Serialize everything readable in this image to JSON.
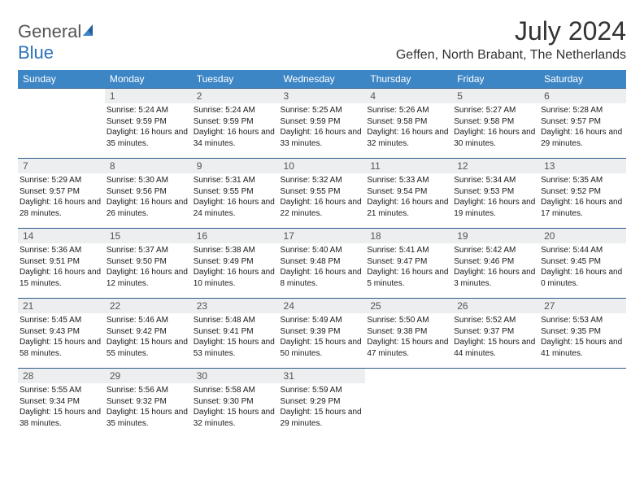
{
  "logo": {
    "text_general": "General",
    "text_blue": "Blue"
  },
  "header": {
    "month_title": "July 2024",
    "location": "Geffen, North Brabant, The Netherlands"
  },
  "colors": {
    "header_bg": "#3d86c6",
    "header_text": "#ffffff",
    "daynum_bg": "#eceeef",
    "row_border": "#2a5a8a",
    "logo_blue": "#2a73b8"
  },
  "weekdays": [
    "Sunday",
    "Monday",
    "Tuesday",
    "Wednesday",
    "Thursday",
    "Friday",
    "Saturday"
  ],
  "weeks": [
    [
      {
        "empty": true
      },
      {
        "n": "1",
        "sr": "5:24 AM",
        "ss": "9:59 PM",
        "dl": "16 hours and 35 minutes."
      },
      {
        "n": "2",
        "sr": "5:24 AM",
        "ss": "9:59 PM",
        "dl": "16 hours and 34 minutes."
      },
      {
        "n": "3",
        "sr": "5:25 AM",
        "ss": "9:59 PM",
        "dl": "16 hours and 33 minutes."
      },
      {
        "n": "4",
        "sr": "5:26 AM",
        "ss": "9:58 PM",
        "dl": "16 hours and 32 minutes."
      },
      {
        "n": "5",
        "sr": "5:27 AM",
        "ss": "9:58 PM",
        "dl": "16 hours and 30 minutes."
      },
      {
        "n": "6",
        "sr": "5:28 AM",
        "ss": "9:57 PM",
        "dl": "16 hours and 29 minutes."
      }
    ],
    [
      {
        "n": "7",
        "sr": "5:29 AM",
        "ss": "9:57 PM",
        "dl": "16 hours and 28 minutes."
      },
      {
        "n": "8",
        "sr": "5:30 AM",
        "ss": "9:56 PM",
        "dl": "16 hours and 26 minutes."
      },
      {
        "n": "9",
        "sr": "5:31 AM",
        "ss": "9:55 PM",
        "dl": "16 hours and 24 minutes."
      },
      {
        "n": "10",
        "sr": "5:32 AM",
        "ss": "9:55 PM",
        "dl": "16 hours and 22 minutes."
      },
      {
        "n": "11",
        "sr": "5:33 AM",
        "ss": "9:54 PM",
        "dl": "16 hours and 21 minutes."
      },
      {
        "n": "12",
        "sr": "5:34 AM",
        "ss": "9:53 PM",
        "dl": "16 hours and 19 minutes."
      },
      {
        "n": "13",
        "sr": "5:35 AM",
        "ss": "9:52 PM",
        "dl": "16 hours and 17 minutes."
      }
    ],
    [
      {
        "n": "14",
        "sr": "5:36 AM",
        "ss": "9:51 PM",
        "dl": "16 hours and 15 minutes."
      },
      {
        "n": "15",
        "sr": "5:37 AM",
        "ss": "9:50 PM",
        "dl": "16 hours and 12 minutes."
      },
      {
        "n": "16",
        "sr": "5:38 AM",
        "ss": "9:49 PM",
        "dl": "16 hours and 10 minutes."
      },
      {
        "n": "17",
        "sr": "5:40 AM",
        "ss": "9:48 PM",
        "dl": "16 hours and 8 minutes."
      },
      {
        "n": "18",
        "sr": "5:41 AM",
        "ss": "9:47 PM",
        "dl": "16 hours and 5 minutes."
      },
      {
        "n": "19",
        "sr": "5:42 AM",
        "ss": "9:46 PM",
        "dl": "16 hours and 3 minutes."
      },
      {
        "n": "20",
        "sr": "5:44 AM",
        "ss": "9:45 PM",
        "dl": "16 hours and 0 minutes."
      }
    ],
    [
      {
        "n": "21",
        "sr": "5:45 AM",
        "ss": "9:43 PM",
        "dl": "15 hours and 58 minutes."
      },
      {
        "n": "22",
        "sr": "5:46 AM",
        "ss": "9:42 PM",
        "dl": "15 hours and 55 minutes."
      },
      {
        "n": "23",
        "sr": "5:48 AM",
        "ss": "9:41 PM",
        "dl": "15 hours and 53 minutes."
      },
      {
        "n": "24",
        "sr": "5:49 AM",
        "ss": "9:39 PM",
        "dl": "15 hours and 50 minutes."
      },
      {
        "n": "25",
        "sr": "5:50 AM",
        "ss": "9:38 PM",
        "dl": "15 hours and 47 minutes."
      },
      {
        "n": "26",
        "sr": "5:52 AM",
        "ss": "9:37 PM",
        "dl": "15 hours and 44 minutes."
      },
      {
        "n": "27",
        "sr": "5:53 AM",
        "ss": "9:35 PM",
        "dl": "15 hours and 41 minutes."
      }
    ],
    [
      {
        "n": "28",
        "sr": "5:55 AM",
        "ss": "9:34 PM",
        "dl": "15 hours and 38 minutes."
      },
      {
        "n": "29",
        "sr": "5:56 AM",
        "ss": "9:32 PM",
        "dl": "15 hours and 35 minutes."
      },
      {
        "n": "30",
        "sr": "5:58 AM",
        "ss": "9:30 PM",
        "dl": "15 hours and 32 minutes."
      },
      {
        "n": "31",
        "sr": "5:59 AM",
        "ss": "9:29 PM",
        "dl": "15 hours and 29 minutes."
      },
      {
        "empty": true
      },
      {
        "empty": true
      },
      {
        "empty": true
      }
    ]
  ],
  "labels": {
    "sunrise": "Sunrise:",
    "sunset": "Sunset:",
    "daylight": "Daylight:"
  }
}
